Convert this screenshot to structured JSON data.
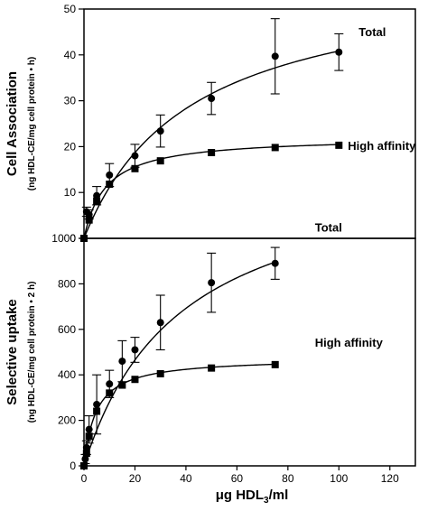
{
  "figure": {
    "xlabel_prefix": "μg HDL",
    "xlabel_sub": "3",
    "xlabel_suffix": "/ml"
  },
  "chart_data": [
    {
      "type": "line",
      "ylabel": "Cell Association",
      "ylabel_units": "(ng HDL-CE/mg cell protein • h)",
      "xlim": [
        0,
        130
      ],
      "ylim": [
        0,
        50
      ],
      "yticks": [
        0,
        10,
        20,
        30,
        40,
        50
      ],
      "xticks": [],
      "grid": false,
      "series": [
        {
          "name": "Total",
          "marker": "circle",
          "points": [
            {
              "x": 0,
              "y": 0,
              "err": 0
            },
            {
              "x": 1,
              "y": 5.8,
              "err": 1.0
            },
            {
              "x": 2,
              "y": 5.2,
              "err": 1.0
            },
            {
              "x": 5,
              "y": 9.3,
              "err": 2.0
            },
            {
              "x": 10,
              "y": 13.8,
              "err": 2.5
            },
            {
              "x": 20,
              "y": 18.0,
              "err": 2.5
            },
            {
              "x": 30,
              "y": 23.4,
              "err": 3.5
            },
            {
              "x": 50,
              "y": 30.5,
              "err": 3.5
            },
            {
              "x": 75,
              "y": 39.7,
              "err": 8.2
            },
            {
              "x": 100,
              "y": 40.6,
              "err": 4.0
            }
          ],
          "curve": {
            "vmax": 58.0,
            "k": 42.0
          }
        },
        {
          "name": "High affinity",
          "marker": "square",
          "points": [
            {
              "x": 0,
              "y": 0,
              "err": 0
            },
            {
              "x": 2,
              "y": 4.0,
              "err": 0
            },
            {
              "x": 5,
              "y": 8.1,
              "err": 0
            },
            {
              "x": 10,
              "y": 11.8,
              "err": 0
            },
            {
              "x": 20,
              "y": 15.2,
              "err": 0
            },
            {
              "x": 30,
              "y": 16.9,
              "err": 0
            },
            {
              "x": 50,
              "y": 18.7,
              "err": 0
            },
            {
              "x": 75,
              "y": 19.8,
              "err": 0
            },
            {
              "x": 100,
              "y": 20.3,
              "err": 0
            }
          ],
          "curve": {
            "vmax": 22.2,
            "k": 8.5
          }
        }
      ]
    },
    {
      "type": "line",
      "ylabel": "Selective uptake",
      "ylabel_units": "(ng HDL-CE/mg cell protein • 2 h)",
      "xlim": [
        0,
        130
      ],
      "ylim": [
        0,
        1000
      ],
      "yticks": [
        0,
        200,
        400,
        600,
        800,
        1000
      ],
      "xticks": [
        0,
        20,
        40,
        60,
        80,
        100,
        120
      ],
      "grid": false,
      "series": [
        {
          "name": "Total",
          "marker": "circle",
          "points": [
            {
              "x": 0,
              "y": 0,
              "err": 0
            },
            {
              "x": 0.5,
              "y": 30,
              "err": 20
            },
            {
              "x": 1,
              "y": 80,
              "err": 30
            },
            {
              "x": 2,
              "y": 160,
              "err": 60
            },
            {
              "x": 5,
              "y": 270,
              "err": 130
            },
            {
              "x": 10,
              "y": 360,
              "err": 60
            },
            {
              "x": 15,
              "y": 460,
              "err": 90
            },
            {
              "x": 20,
              "y": 510,
              "err": 55
            },
            {
              "x": 30,
              "y": 630,
              "err": 120
            },
            {
              "x": 50,
              "y": 805,
              "err": 130
            },
            {
              "x": 75,
              "y": 890,
              "err": 70
            }
          ],
          "curve": {
            "vmax": 1350,
            "k": 38
          }
        },
        {
          "name": "High affinity",
          "marker": "square",
          "points": [
            {
              "x": 0,
              "y": 0,
              "err": 0
            },
            {
              "x": 1,
              "y": 55,
              "err": 0
            },
            {
              "x": 2,
              "y": 130,
              "err": 0
            },
            {
              "x": 5,
              "y": 240,
              "err": 0
            },
            {
              "x": 10,
              "y": 320,
              "err": 0
            },
            {
              "x": 15,
              "y": 355,
              "err": 0
            },
            {
              "x": 20,
              "y": 380,
              "err": 0
            },
            {
              "x": 30,
              "y": 405,
              "err": 0
            },
            {
              "x": 50,
              "y": 430,
              "err": 0
            },
            {
              "x": 75,
              "y": 445,
              "err": 0
            }
          ],
          "curve": {
            "vmax": 475,
            "k": 4.8
          }
        }
      ]
    }
  ]
}
